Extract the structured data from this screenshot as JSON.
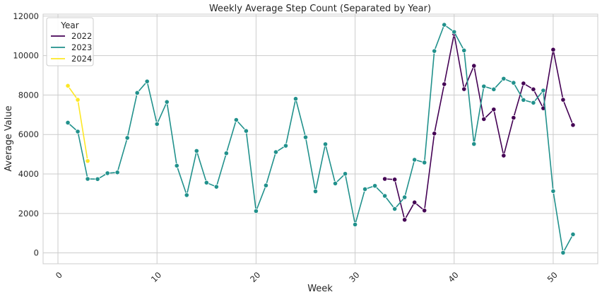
{
  "chart_data": {
    "type": "line",
    "title": "Weekly Average Step Count (Separated by Year)",
    "xlabel": "Week",
    "ylabel": "Average Value",
    "xlim": [
      -1.5,
      54.5
    ],
    "ylim": [
      -550,
      12100
    ],
    "xticks": [
      0,
      10,
      20,
      30,
      40,
      50
    ],
    "yticks": [
      0,
      2000,
      4000,
      6000,
      8000,
      10000,
      12000
    ],
    "grid": true,
    "legend": {
      "title": "Year",
      "placement": "top-left"
    },
    "series": [
      {
        "name": "2022",
        "color": "#440154",
        "x": [
          33,
          34,
          35,
          36,
          37,
          38,
          39,
          40,
          41,
          42,
          43,
          44,
          45,
          46,
          47,
          48,
          49,
          50,
          51,
          52
        ],
        "y": [
          3750,
          3720,
          1680,
          2560,
          2150,
          6050,
          8550,
          11100,
          8300,
          9480,
          6780,
          7270,
          4930,
          6850,
          8590,
          8290,
          7330,
          10300,
          7760,
          6480
        ]
      },
      {
        "name": "2023",
        "color": "#21918c",
        "x": [
          1,
          2,
          3,
          4,
          5,
          6,
          7,
          8,
          9,
          10,
          11,
          12,
          13,
          14,
          15,
          16,
          17,
          18,
          19,
          20,
          21,
          22,
          23,
          24,
          25,
          26,
          27,
          28,
          29,
          30,
          31,
          32,
          33,
          34,
          35,
          36,
          37,
          38,
          39,
          40,
          41,
          42,
          43,
          44,
          45,
          46,
          47,
          48,
          49,
          50,
          51,
          52
        ],
        "y": [
          6600,
          6150,
          3750,
          3740,
          4040,
          4080,
          5830,
          8110,
          8690,
          6530,
          7650,
          4420,
          2930,
          5170,
          3560,
          3350,
          5050,
          6740,
          6180,
          2120,
          3420,
          5110,
          5430,
          7810,
          5860,
          3120,
          5510,
          3520,
          4010,
          1440,
          3230,
          3400,
          2890,
          2230,
          2820,
          4720,
          4580,
          10230,
          11560,
          11200,
          10260,
          5520,
          8440,
          8290,
          8830,
          8620,
          7750,
          7610,
          8230,
          3130,
          10,
          940
        ]
      },
      {
        "name": "2024",
        "color": "#fde725",
        "x": [
          1,
          2,
          3
        ],
        "y": [
          8470,
          7760,
          4660
        ]
      }
    ]
  }
}
